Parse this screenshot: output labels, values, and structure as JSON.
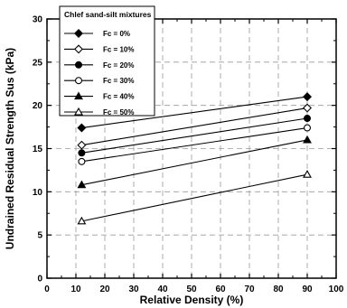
{
  "chart_data": {
    "type": "line",
    "xlabel": "Relative Density (%)",
    "ylabel": "Undrained Residual Strength Sus (kPa)",
    "xlim": [
      0,
      100
    ],
    "ylim": [
      0,
      30
    ],
    "x_ticks": [
      "0",
      "10",
      "20",
      "30",
      "40",
      "50",
      "60",
      "70",
      "80",
      "90",
      "100"
    ],
    "y_ticks": [
      "0",
      "5",
      "10",
      "15",
      "20",
      "25",
      "30"
    ],
    "grid": true,
    "legend_position": "top-left",
    "legend_title": "Chlef sand-silt mixtures",
    "series": [
      {
        "name": "Fc = 0%",
        "marker": "filled-diamond",
        "x": [
          12,
          90
        ],
        "y": [
          17.4,
          21.0
        ]
      },
      {
        "name": "Fc = 10%",
        "marker": "open-diamond",
        "x": [
          12,
          90
        ],
        "y": [
          15.4,
          19.7
        ]
      },
      {
        "name": "Fc = 20%",
        "marker": "filled-circle",
        "x": [
          12,
          90
        ],
        "y": [
          14.5,
          18.5
        ]
      },
      {
        "name": "Fc = 30%",
        "marker": "open-circle",
        "x": [
          12,
          90
        ],
        "y": [
          13.5,
          17.4
        ]
      },
      {
        "name": "Fc = 40%",
        "marker": "filled-triangle",
        "x": [
          12,
          90
        ],
        "y": [
          10.8,
          16.0
        ]
      },
      {
        "name": "Fc = 50%",
        "marker": "open-triangle",
        "x": [
          12,
          90
        ],
        "y": [
          6.6,
          12.0
        ]
      }
    ]
  }
}
